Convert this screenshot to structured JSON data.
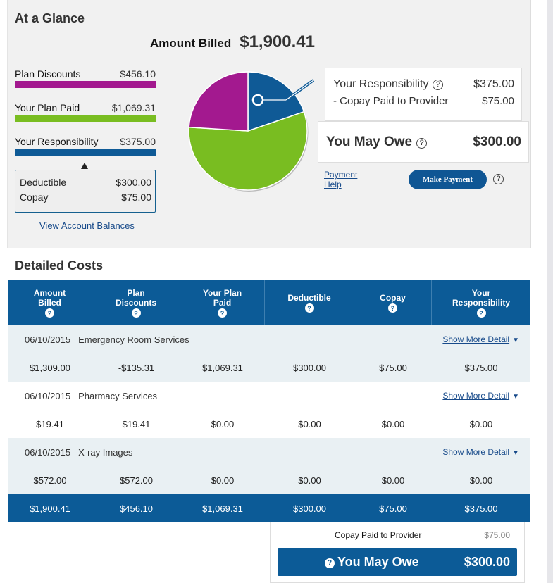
{
  "glance": {
    "title": "At a Glance",
    "amount_billed_label": "Amount Billed",
    "amount_billed_value": "$1,900.41",
    "legend": [
      {
        "name": "Plan Discounts",
        "amount": "$456.10",
        "color": "#a3198f"
      },
      {
        "name": "Your Plan Paid",
        "amount": "$1,069.31",
        "color": "#79bd21"
      },
      {
        "name": "Your Responsibility",
        "amount": "$375.00",
        "color": "#0f5a96"
      }
    ],
    "breakdown": [
      {
        "label": "Deductible",
        "amount": "$300.00"
      },
      {
        "label": "Copay",
        "amount": "$75.00"
      }
    ],
    "view_balances_link": "View Account Balances",
    "responsibility": {
      "label": "Your Responsibility",
      "value": "$375.00",
      "copay_label": "- Copay Paid to Provider",
      "copay_value": "$75.00"
    },
    "you_may_owe": {
      "label": "You May Owe",
      "value": "$300.00"
    },
    "payment_help_link": "Payment Help",
    "make_payment_button": "Make Payment",
    "help_glyph": "?"
  },
  "chart_data": {
    "type": "pie",
    "slices": [
      {
        "name": "Your Responsibility",
        "value": 375.0,
        "color": "#0f5a96"
      },
      {
        "name": "Your Plan Paid",
        "value": 1069.31,
        "color": "#79bd21"
      },
      {
        "name": "Plan Discounts",
        "value": 456.1,
        "color": "#a3198f"
      }
    ],
    "total": 1900.41
  },
  "detailed": {
    "title": "Detailed Costs",
    "columns": [
      {
        "line1": "Amount",
        "line2": "Billed"
      },
      {
        "line1": "Plan",
        "line2": "Discounts"
      },
      {
        "line1": "Your Plan",
        "line2": "Paid"
      },
      {
        "line1": "Deductible",
        "line2": ""
      },
      {
        "line1": "Copay",
        "line2": ""
      },
      {
        "line1": "Your",
        "line2": "Responsibility"
      }
    ],
    "show_more_label": "Show More Detail",
    "rows": [
      {
        "date": "06/10/2015",
        "description": "Emergency Room Services",
        "values": [
          "$1,309.00",
          "-$135.31",
          "$1,069.31",
          "$300.00",
          "$75.00",
          "$375.00"
        ]
      },
      {
        "date": "06/10/2015",
        "description": "Pharmacy Services",
        "values": [
          "$19.41",
          "$19.41",
          "$0.00",
          "$0.00",
          "$0.00",
          "$0.00"
        ]
      },
      {
        "date": "06/10/2015",
        "description": "X-ray Images",
        "values": [
          "$572.00",
          "$572.00",
          "$0.00",
          "$0.00",
          "$0.00",
          "$0.00"
        ]
      }
    ],
    "totals": [
      "$1,900.41",
      "$456.10",
      "$1,069.31",
      "$300.00",
      "$75.00",
      "$375.00"
    ],
    "summary": {
      "copay_label": "Copay Paid to Provider",
      "copay_value": "$75.00",
      "owe_label": "You May Owe",
      "owe_value": "$300.00"
    }
  }
}
